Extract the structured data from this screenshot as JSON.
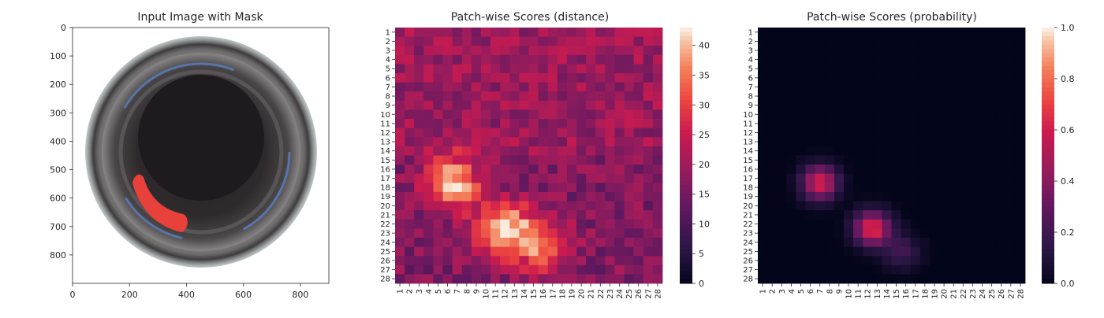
{
  "chart_data": [
    {
      "type": "image",
      "title": "Input Image with Mask",
      "xticks": [
        0,
        200,
        400,
        600,
        800
      ],
      "yticks": [
        0,
        100,
        200,
        300,
        400,
        500,
        600,
        700,
        800
      ],
      "xlim": [
        0,
        900
      ],
      "ylim": [
        900,
        0
      ],
      "colors": {
        "mask": "#e8403a",
        "glass": "#3a3a3a",
        "rim_blue": "#5a7fc0",
        "center": "#1f1a1d"
      }
    },
    {
      "type": "heatmap",
      "title": "Patch-wise Scores (distance)",
      "rows": [
        "1",
        "2",
        "3",
        "4",
        "5",
        "6",
        "7",
        "8",
        "9",
        "10",
        "11",
        "12",
        "13",
        "14",
        "15",
        "16",
        "17",
        "18",
        "19",
        "20",
        "21",
        "22",
        "23",
        "24",
        "25",
        "26",
        "27",
        "28"
      ],
      "cols": [
        "1",
        "2",
        "3",
        "4",
        "5",
        "6",
        "7",
        "8",
        "9",
        "10",
        "11",
        "12",
        "13",
        "14",
        "15",
        "16",
        "17",
        "18",
        "19",
        "20",
        "21",
        "22",
        "23",
        "24",
        "25",
        "26",
        "27",
        "28"
      ],
      "base": 17,
      "hotspots": [
        {
          "row": 17.5,
          "col": 6.5,
          "peak": 42
        },
        {
          "row": 22.5,
          "col": 12,
          "peak": 43
        },
        {
          "row": 24.5,
          "col": 16,
          "peak": 34
        }
      ],
      "colorbar": {
        "min": 0,
        "max": 43,
        "ticks": [
          0,
          5,
          10,
          15,
          20,
          25,
          30,
          35,
          40
        ]
      }
    },
    {
      "type": "heatmap",
      "title": "Patch-wise Scores (probability)",
      "rows": [
        "1",
        "2",
        "3",
        "4",
        "5",
        "6",
        "7",
        "8",
        "9",
        "10",
        "11",
        "12",
        "13",
        "14",
        "15",
        "16",
        "17",
        "18",
        "19",
        "20",
        "21",
        "22",
        "23",
        "24",
        "25",
        "26",
        "27",
        "28"
      ],
      "cols": [
        "1",
        "2",
        "3",
        "4",
        "5",
        "6",
        "7",
        "8",
        "9",
        "10",
        "11",
        "12",
        "13",
        "14",
        "15",
        "16",
        "17",
        "18",
        "19",
        "20",
        "21",
        "22",
        "23",
        "24",
        "25",
        "26",
        "27",
        "28"
      ],
      "base": 0,
      "hotspots": [
        {
          "row": 17.5,
          "col": 7,
          "peak": 0.62
        },
        {
          "row": 22.5,
          "col": 12.5,
          "peak": 0.68
        },
        {
          "row": 25,
          "col": 15.5,
          "peak": 0.2
        }
      ],
      "colorbar": {
        "min": 0,
        "max": 1,
        "ticks": [
          0.0,
          0.2,
          0.4,
          0.6,
          0.8,
          1.0
        ]
      }
    }
  ]
}
